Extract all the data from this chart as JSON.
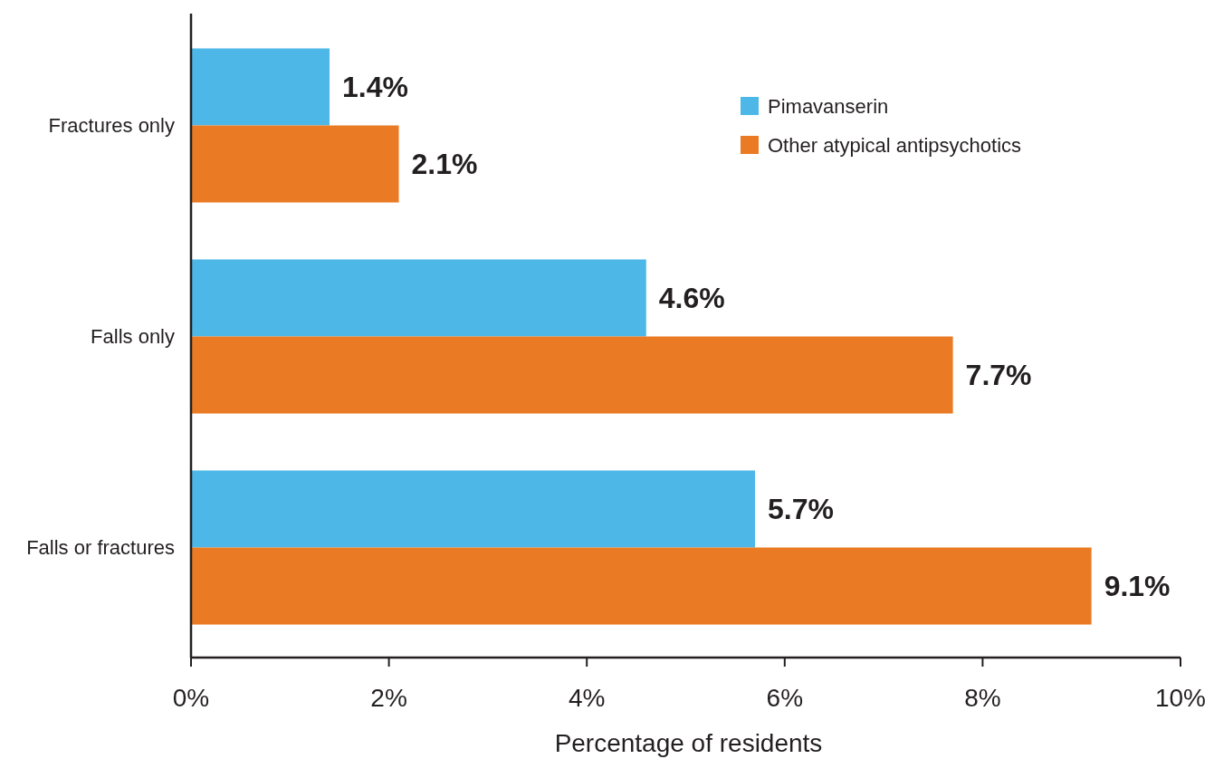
{
  "chart_data": {
    "type": "bar",
    "orientation": "horizontal",
    "xlabel": "Percentage of residents",
    "categories": [
      "Fractures only",
      "Falls only",
      "Falls or fractures"
    ],
    "series": [
      {
        "name": "Pimavanserin",
        "color": "#4db8e8",
        "values": [
          1.4,
          4.6,
          5.7
        ],
        "value_labels": [
          "1.4%",
          "4.6%",
          "5.7%"
        ]
      },
      {
        "name": "Other atypical antipsychotics",
        "color": "#ea7b24",
        "values": [
          2.1,
          7.7,
          9.1
        ],
        "value_labels": [
          "2.1%",
          "7.7%",
          "9.1%"
        ]
      }
    ],
    "xlim": [
      0,
      10
    ],
    "xticks": [
      {
        "value": 0,
        "label": "0%"
      },
      {
        "value": 2,
        "label": "2%"
      },
      {
        "value": 4,
        "label": "4%"
      },
      {
        "value": 6,
        "label": "6%"
      },
      {
        "value": 8,
        "label": "8%"
      },
      {
        "value": 10,
        "label": "10%"
      }
    ],
    "legend": "top right",
    "grid": false
  }
}
